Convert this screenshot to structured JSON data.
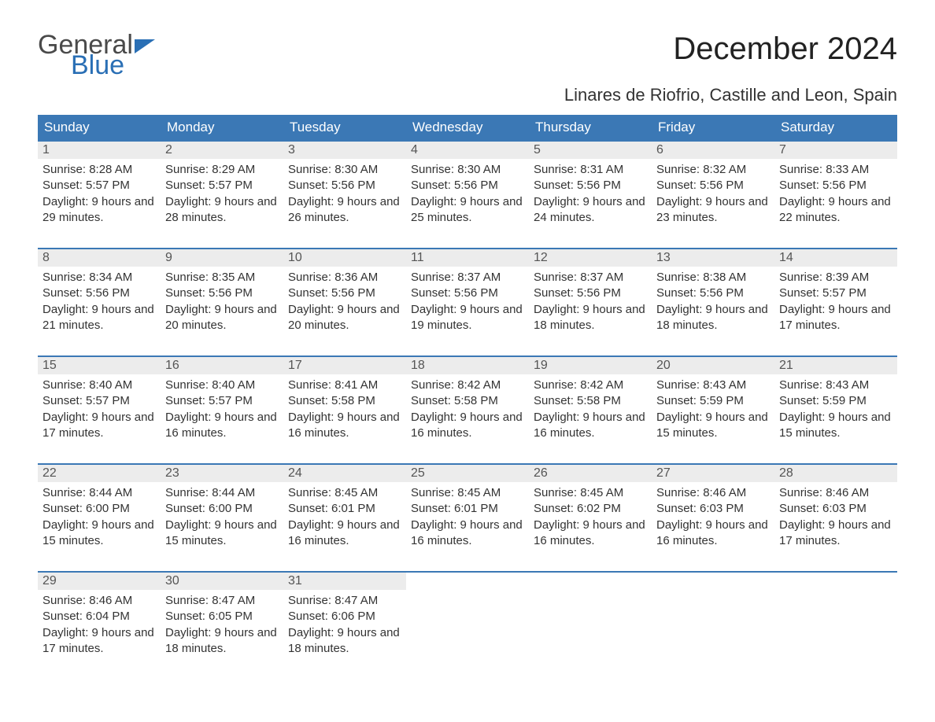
{
  "logo": {
    "word1": "General",
    "word2": "Blue"
  },
  "title": "December 2024",
  "location": "Linares de Riofrio, Castille and Leon, Spain",
  "colors": {
    "header_bg": "#3b78b5",
    "header_text": "#ffffff",
    "daynum_bg": "#ececec",
    "row_border": "#3b78b5",
    "body_text": "#333333",
    "logo_gray": "#4a4a4a",
    "logo_blue": "#2a6fb5",
    "page_bg": "#ffffff"
  },
  "day_headers": [
    "Sunday",
    "Monday",
    "Tuesday",
    "Wednesday",
    "Thursday",
    "Friday",
    "Saturday"
  ],
  "weeks": [
    [
      {
        "n": "1",
        "sr": "8:28 AM",
        "ss": "5:57 PM",
        "dl": "9 hours and 29 minutes."
      },
      {
        "n": "2",
        "sr": "8:29 AM",
        "ss": "5:57 PM",
        "dl": "9 hours and 28 minutes."
      },
      {
        "n": "3",
        "sr": "8:30 AM",
        "ss": "5:56 PM",
        "dl": "9 hours and 26 minutes."
      },
      {
        "n": "4",
        "sr": "8:30 AM",
        "ss": "5:56 PM",
        "dl": "9 hours and 25 minutes."
      },
      {
        "n": "5",
        "sr": "8:31 AM",
        "ss": "5:56 PM",
        "dl": "9 hours and 24 minutes."
      },
      {
        "n": "6",
        "sr": "8:32 AM",
        "ss": "5:56 PM",
        "dl": "9 hours and 23 minutes."
      },
      {
        "n": "7",
        "sr": "8:33 AM",
        "ss": "5:56 PM",
        "dl": "9 hours and 22 minutes."
      }
    ],
    [
      {
        "n": "8",
        "sr": "8:34 AM",
        "ss": "5:56 PM",
        "dl": "9 hours and 21 minutes."
      },
      {
        "n": "9",
        "sr": "8:35 AM",
        "ss": "5:56 PM",
        "dl": "9 hours and 20 minutes."
      },
      {
        "n": "10",
        "sr": "8:36 AM",
        "ss": "5:56 PM",
        "dl": "9 hours and 20 minutes."
      },
      {
        "n": "11",
        "sr": "8:37 AM",
        "ss": "5:56 PM",
        "dl": "9 hours and 19 minutes."
      },
      {
        "n": "12",
        "sr": "8:37 AM",
        "ss": "5:56 PM",
        "dl": "9 hours and 18 minutes."
      },
      {
        "n": "13",
        "sr": "8:38 AM",
        "ss": "5:56 PM",
        "dl": "9 hours and 18 minutes."
      },
      {
        "n": "14",
        "sr": "8:39 AM",
        "ss": "5:57 PM",
        "dl": "9 hours and 17 minutes."
      }
    ],
    [
      {
        "n": "15",
        "sr": "8:40 AM",
        "ss": "5:57 PM",
        "dl": "9 hours and 17 minutes."
      },
      {
        "n": "16",
        "sr": "8:40 AM",
        "ss": "5:57 PM",
        "dl": "9 hours and 16 minutes."
      },
      {
        "n": "17",
        "sr": "8:41 AM",
        "ss": "5:58 PM",
        "dl": "9 hours and 16 minutes."
      },
      {
        "n": "18",
        "sr": "8:42 AM",
        "ss": "5:58 PM",
        "dl": "9 hours and 16 minutes."
      },
      {
        "n": "19",
        "sr": "8:42 AM",
        "ss": "5:58 PM",
        "dl": "9 hours and 16 minutes."
      },
      {
        "n": "20",
        "sr": "8:43 AM",
        "ss": "5:59 PM",
        "dl": "9 hours and 15 minutes."
      },
      {
        "n": "21",
        "sr": "8:43 AM",
        "ss": "5:59 PM",
        "dl": "9 hours and 15 minutes."
      }
    ],
    [
      {
        "n": "22",
        "sr": "8:44 AM",
        "ss": "6:00 PM",
        "dl": "9 hours and 15 minutes."
      },
      {
        "n": "23",
        "sr": "8:44 AM",
        "ss": "6:00 PM",
        "dl": "9 hours and 15 minutes."
      },
      {
        "n": "24",
        "sr": "8:45 AM",
        "ss": "6:01 PM",
        "dl": "9 hours and 16 minutes."
      },
      {
        "n": "25",
        "sr": "8:45 AM",
        "ss": "6:01 PM",
        "dl": "9 hours and 16 minutes."
      },
      {
        "n": "26",
        "sr": "8:45 AM",
        "ss": "6:02 PM",
        "dl": "9 hours and 16 minutes."
      },
      {
        "n": "27",
        "sr": "8:46 AM",
        "ss": "6:03 PM",
        "dl": "9 hours and 16 minutes."
      },
      {
        "n": "28",
        "sr": "8:46 AM",
        "ss": "6:03 PM",
        "dl": "9 hours and 17 minutes."
      }
    ],
    [
      {
        "n": "29",
        "sr": "8:46 AM",
        "ss": "6:04 PM",
        "dl": "9 hours and 17 minutes."
      },
      {
        "n": "30",
        "sr": "8:47 AM",
        "ss": "6:05 PM",
        "dl": "9 hours and 18 minutes."
      },
      {
        "n": "31",
        "sr": "8:47 AM",
        "ss": "6:06 PM",
        "dl": "9 hours and 18 minutes."
      },
      null,
      null,
      null,
      null
    ]
  ],
  "labels": {
    "sunrise": "Sunrise:",
    "sunset": "Sunset:",
    "daylight": "Daylight:"
  }
}
